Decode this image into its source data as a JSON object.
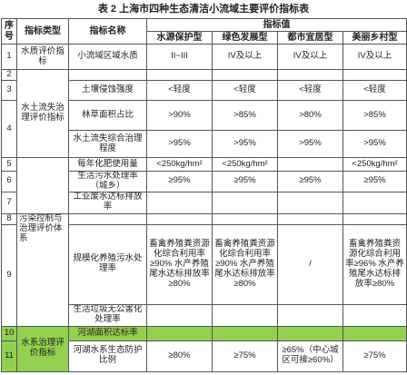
{
  "title": "表 2 上海市四种生态清洁小流域主要评价指标表",
  "header": {
    "no": "序号",
    "type": "指标类型",
    "name": "指标名称",
    "value": "指标值",
    "cols": [
      "水源保护型",
      "绿色发展型",
      "都市宜居型",
      "美丽乡村型"
    ]
  },
  "rows": [
    {
      "no": "1",
      "type": "水质评价指标",
      "name": "小流域区域水质",
      "values": [
        "II~III",
        "IV及以上",
        "IV及以上",
        "IV及以上"
      ]
    },
    {
      "no": "2",
      "type": "水土流失治理评价指标"
    },
    {
      "no": "3",
      "name": "土壤侵蚀强度",
      "values": [
        "<轻度",
        "<轻度",
        "<轻度",
        "<轻度"
      ]
    },
    {
      "no": "4",
      "name": "林草面积占比",
      "values": [
        ">90%",
        ">85%",
        ">80%",
        ">85%"
      ]
    },
    {
      "name": "水土流失综合治理程度",
      "values": [
        ">95%",
        ">95%",
        ">95%",
        ">95%"
      ]
    },
    {
      "no": "5",
      "name": "每年化肥使用量",
      "values": [
        "<250kg/hm²",
        "<250kg/hm²",
        null,
        "<250kg/hm²"
      ]
    },
    {
      "no": "6",
      "name": "生活污水处理率（城乡）",
      "values": [
        "≥95%",
        "≥95%",
        "≥95%",
        "≥95%"
      ]
    },
    {
      "no": "7",
      "name": "工业废水达标排放率"
    },
    {
      "no": "8",
      "type": "污染控制与治理评价体系"
    },
    {
      "no": "9",
      "name": "规模化养殖污水处理率",
      "values": [
        "畜禽养殖粪资源化综合利用率≥90% 水产养殖尾水达标排放率≥80%",
        "畜禽养殖粪资源化综合利用率≥90% 水产养殖尾水达标排放率≥80%",
        "/",
        "畜禽养殖粪资源化综合利用率≥96% 水产养殖尾水达标排放率≥80%"
      ]
    },
    {
      "name": "生活垃圾无公害化处理率"
    },
    {
      "no": "10",
      "type": "水系治理评价指标",
      "name": "河湖面积达标率"
    },
    {
      "no": "11",
      "name": "河湖水系生态防护比例",
      "values": [
        "≥80%",
        "≥75%",
        "≥65%（中心城区可接≥60%）",
        "≥75%"
      ]
    }
  ]
}
